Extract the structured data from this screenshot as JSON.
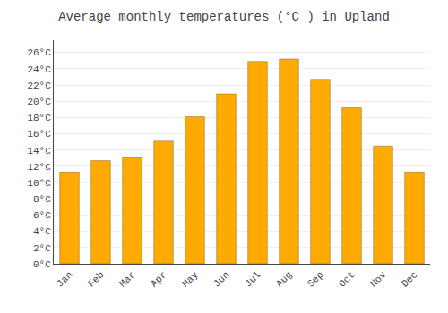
{
  "chart_data": {
    "type": "bar",
    "title": "Average monthly temperatures (°C ) in Upland",
    "categories": [
      "Jan",
      "Feb",
      "Mar",
      "Apr",
      "May",
      "Jun",
      "Jul",
      "Aug",
      "Sep",
      "Oct",
      "Nov",
      "Dec"
    ],
    "values": [
      11.3,
      12.7,
      13.1,
      15.1,
      18.1,
      20.9,
      24.9,
      25.2,
      22.7,
      19.2,
      14.5,
      11.3
    ],
    "color": "#FFAA00",
    "ylim": [
      0,
      27.5
    ],
    "yticks": [
      {
        "value": 0,
        "label": "0°C"
      },
      {
        "value": 2,
        "label": "2°C"
      },
      {
        "value": 4,
        "label": "4°C"
      },
      {
        "value": 6,
        "label": "6°C"
      },
      {
        "value": 8,
        "label": "8°C"
      },
      {
        "value": 10,
        "label": "10°C"
      },
      {
        "value": 12,
        "label": "12°C"
      },
      {
        "value": 14,
        "label": "14°C"
      },
      {
        "value": 16,
        "label": "16°C"
      },
      {
        "value": 18,
        "label": "18°C"
      },
      {
        "value": 20,
        "label": "20°C"
      },
      {
        "value": 22,
        "label": "22°C"
      },
      {
        "value": 24,
        "label": "24°C"
      },
      {
        "value": 26,
        "label": "26°C"
      }
    ],
    "grid": true
  }
}
